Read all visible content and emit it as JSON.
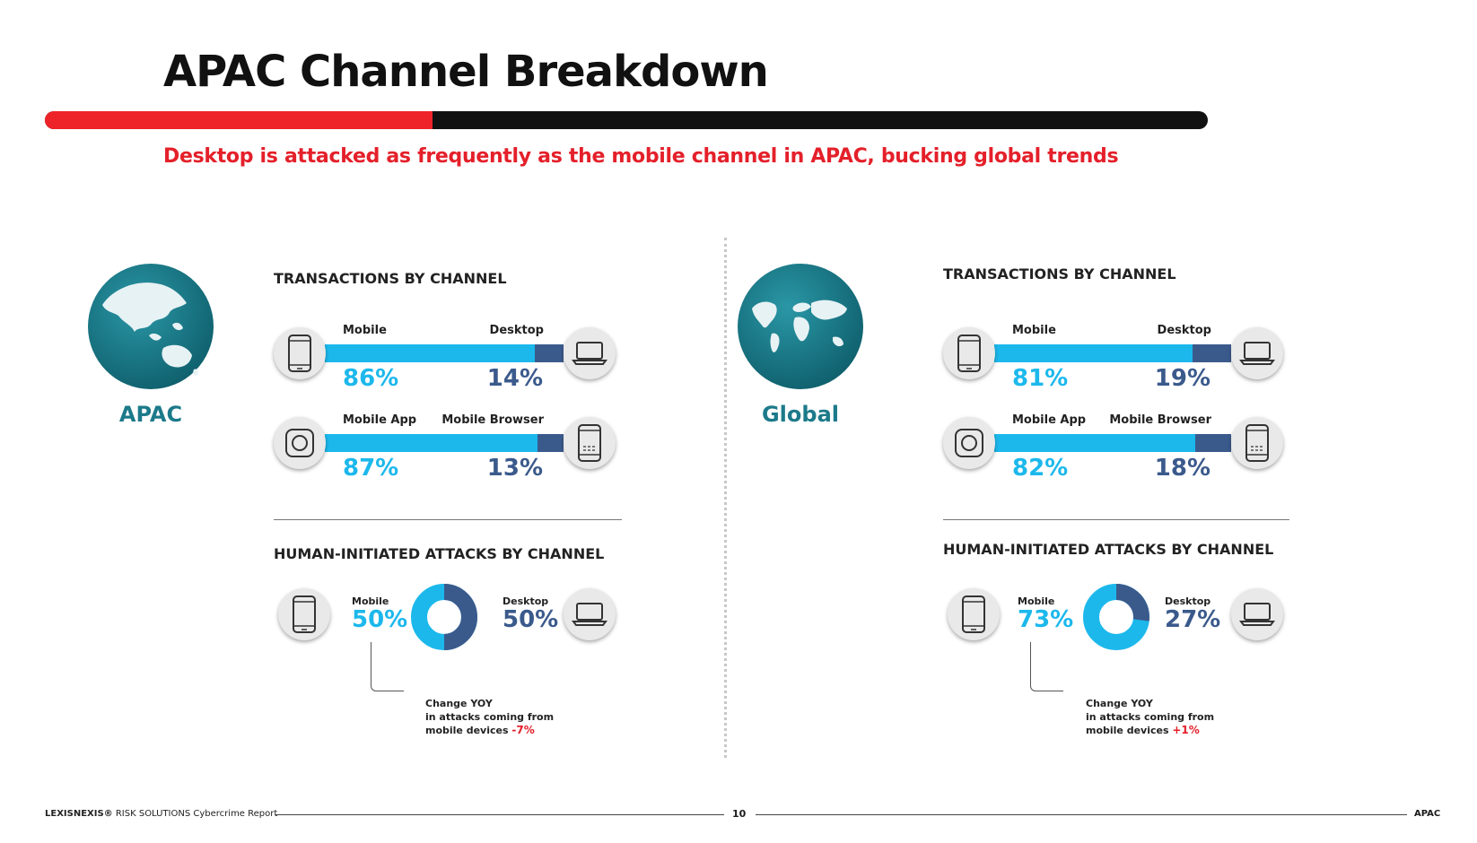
{
  "title": "APAC Channel Breakdown",
  "subtitle": "Desktop is attacked as frequently as the mobile channel in APAC, bucking global trends",
  "colors": {
    "accent_red": "#ee2329",
    "light_blue": "#1cb8ec",
    "dark_blue": "#3b5a8c",
    "teal": "#1c7a8a"
  },
  "regions": [
    {
      "label": "APAC",
      "globe_icon": "globe-asia-pacific-icon",
      "transactions_heading": "TRANSACTIONS BY CHANNEL",
      "attacks_heading": "HUMAN-INITIATED ATTACKS BY CHANNEL",
      "note": {
        "line1": "Change YOY",
        "line2": "in attacks coming from",
        "line3": "mobile devices",
        "change": "-7%"
      }
    },
    {
      "label": "Global",
      "globe_icon": "globe-world-map-icon",
      "transactions_heading": "TRANSACTIONS BY CHANNEL",
      "attacks_heading": "HUMAN-INITIATED ATTACKS BY CHANNEL",
      "note": {
        "line1": "Change YOY",
        "line2": "in attacks coming from",
        "line3": "mobile devices",
        "change": "+1%"
      }
    }
  ],
  "chart_data": [
    {
      "type": "bar",
      "region": "APAC",
      "categories": [
        "Mobile",
        "Desktop"
      ],
      "values": [
        86,
        14
      ],
      "labels": [
        "86%",
        "14%"
      ],
      "icons": [
        "smartphone-icon",
        "laptop-icon"
      ]
    },
    {
      "type": "bar",
      "region": "APAC",
      "categories": [
        "Mobile App",
        "Mobile Browser"
      ],
      "values": [
        87,
        13
      ],
      "labels": [
        "87%",
        "13%"
      ],
      "icons": [
        "app-icon",
        "mobile-browser-icon"
      ]
    },
    {
      "type": "pie",
      "region": "APAC",
      "categories": [
        "Mobile",
        "Desktop"
      ],
      "values": [
        50,
        50
      ],
      "labels": [
        "50%",
        "50%"
      ],
      "icons": [
        "smartphone-icon",
        "laptop-icon"
      ]
    },
    {
      "type": "bar",
      "region": "Global",
      "categories": [
        "Mobile",
        "Desktop"
      ],
      "values": [
        81,
        19
      ],
      "labels": [
        "81%",
        "19%"
      ],
      "icons": [
        "smartphone-icon",
        "laptop-icon"
      ]
    },
    {
      "type": "bar",
      "region": "Global",
      "categories": [
        "Mobile App",
        "Mobile Browser"
      ],
      "values": [
        82,
        18
      ],
      "labels": [
        "82%",
        "18%"
      ],
      "icons": [
        "app-icon",
        "mobile-browser-icon"
      ]
    },
    {
      "type": "pie",
      "region": "Global",
      "categories": [
        "Mobile",
        "Desktop"
      ],
      "values": [
        73,
        27
      ],
      "labels": [
        "73%",
        "27%"
      ],
      "icons": [
        "smartphone-icon",
        "laptop-icon"
      ]
    }
  ],
  "footer": {
    "brand": "LEXISNEXIS®",
    "report": "RISK SOLUTIONS Cybercrime Report",
    "page": "10",
    "section": "APAC"
  }
}
